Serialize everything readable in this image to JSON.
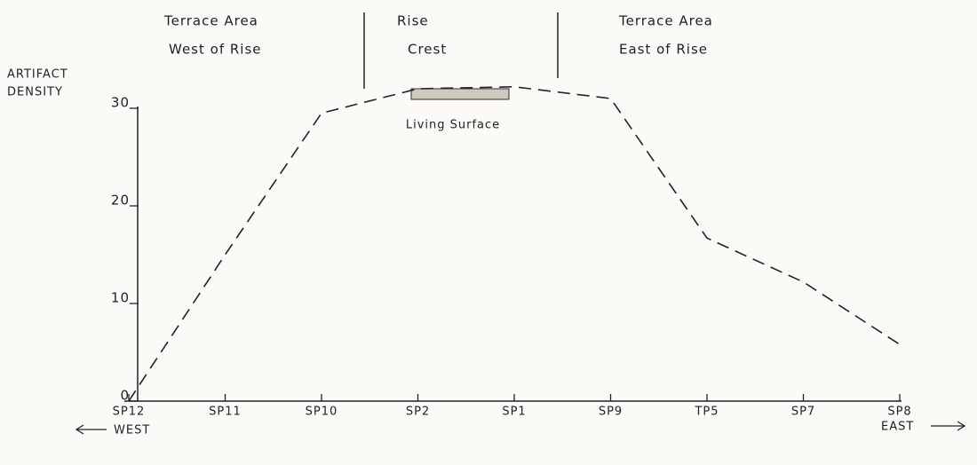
{
  "chart_data": {
    "type": "line",
    "y_label_lines": [
      "ARTIFACT",
      "DENSITY"
    ],
    "categories": [
      "SP12",
      "SP11",
      "SP10",
      "SP2",
      "SP1",
      "SP9",
      "TP5",
      "SP7",
      "SP8"
    ],
    "values": [
      0,
      15,
      29.5,
      32,
      32.2,
      31,
      16.7,
      12.2,
      5.8
    ],
    "color": "#222222",
    "dashed": true,
    "ylim": [
      0,
      30
    ],
    "yticks": [
      0,
      10,
      20,
      30
    ],
    "regions": [
      {
        "lines": [
          "Terrace Area",
          "West of Rise"
        ]
      },
      {
        "lines": [
          "Rise",
          "Crest"
        ]
      },
      {
        "lines": [
          "Terrace  Area",
          "East of Rise"
        ]
      }
    ],
    "annotation": "Living Surface",
    "west_label": "WEST",
    "east_label": "EAST"
  }
}
